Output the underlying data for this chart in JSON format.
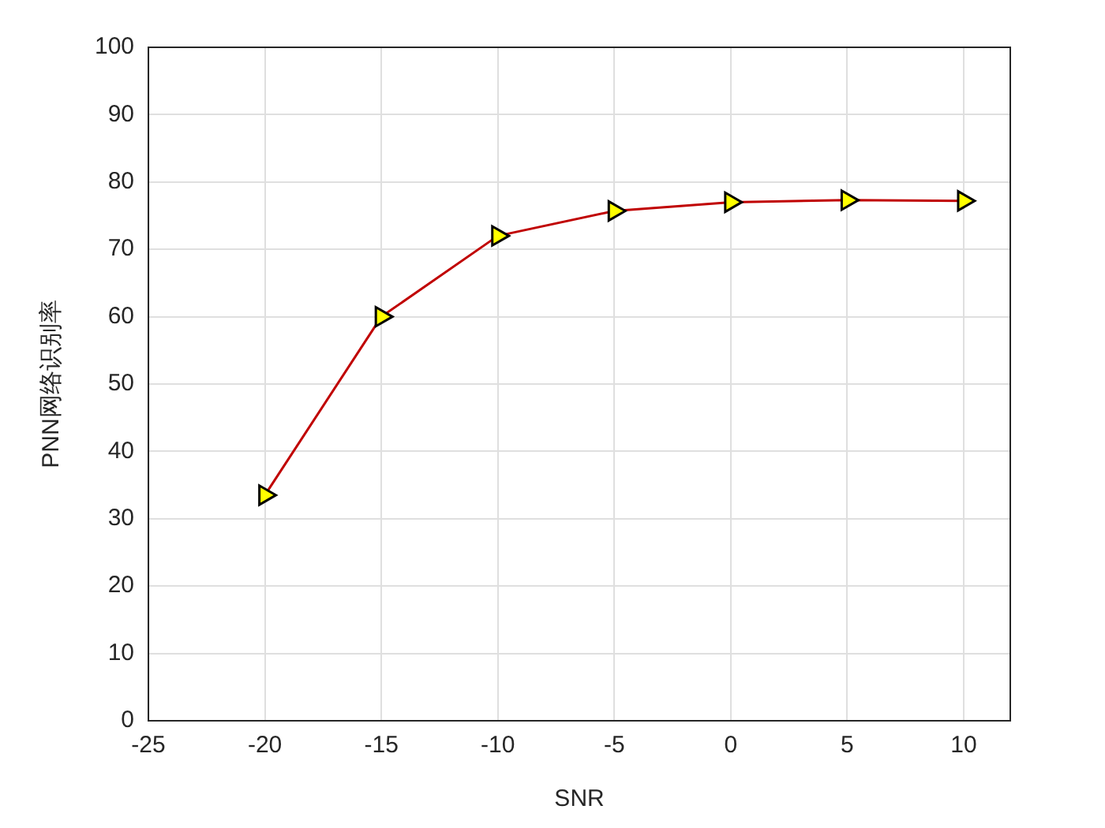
{
  "chart_data": {
    "type": "line",
    "xlabel": "SNR",
    "ylabel": "PNN网络识别率",
    "x": [
      -20,
      -15,
      -10,
      -5,
      0,
      5,
      10
    ],
    "series": [
      {
        "color": "#c00000",
        "values": [
          33.5,
          60,
          72,
          75.7,
          77,
          77.3,
          77.2
        ]
      }
    ],
    "xlim": [
      -25,
      12
    ],
    "xticks": [
      -25,
      -20,
      -15,
      -10,
      -5,
      0,
      5,
      10
    ],
    "ylim": [
      0,
      100
    ],
    "yticks": [
      0,
      10,
      20,
      30,
      40,
      50,
      60,
      70,
      80,
      90,
      100
    ],
    "grid": true,
    "legend": false,
    "marker": "triangle",
    "line_style": "solid"
  }
}
